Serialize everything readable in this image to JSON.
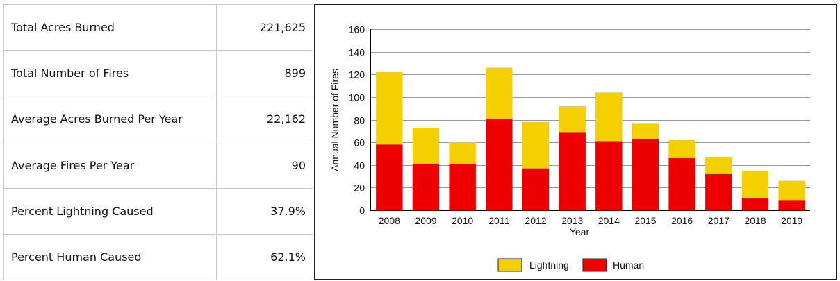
{
  "stats": [
    {
      "label": "Total Acres Burned",
      "value": "221,625"
    },
    {
      "label": "Total Number of Fires",
      "value": "899"
    },
    {
      "label": "Average Acres Burned Per Year",
      "value": "22,162"
    },
    {
      "label": "Average Fires Per Year",
      "value": "90"
    },
    {
      "label": "Percent Lightning Caused",
      "value": "37.9%"
    },
    {
      "label": "Percent Human Caused",
      "value": "62.1%"
    }
  ],
  "colors": {
    "lightning": "#f5d000",
    "human": "#ee0000"
  },
  "chart_data": {
    "type": "bar",
    "stacked": true,
    "title": "",
    "xlabel": "Year",
    "ylabel": "Annual Number of Fires",
    "ylim": [
      0,
      160
    ],
    "yticks": [
      0,
      20,
      40,
      60,
      80,
      100,
      120,
      140,
      160
    ],
    "grid": true,
    "legend_position": "bottom",
    "categories": [
      "2008",
      "2009",
      "2010",
      "2011",
      "2012",
      "2013",
      "2014",
      "2015",
      "2016",
      "2017",
      "2018",
      "2019"
    ],
    "series": [
      {
        "name": "Human",
        "values": [
          58,
          41,
          41,
          81,
          37,
          69,
          61,
          63,
          46,
          32,
          11,
          9
        ]
      },
      {
        "name": "Lightning",
        "values": [
          64,
          32,
          19,
          45,
          41,
          23,
          43,
          14,
          16,
          15,
          24,
          17
        ]
      }
    ]
  }
}
